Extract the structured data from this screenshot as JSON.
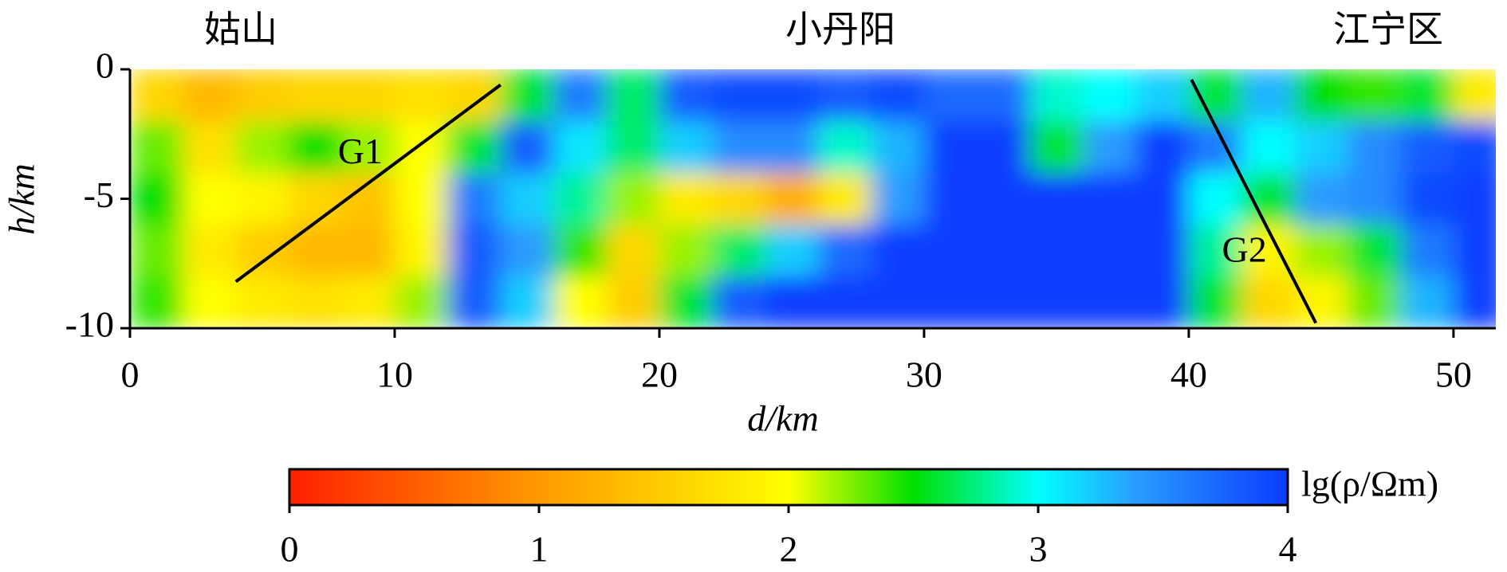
{
  "chart_data": {
    "type": "heatmap",
    "annotations_top": [
      "姑山",
      "小丹阳",
      "江宁区"
    ],
    "xlabel": "d/km",
    "ylabel": "h/km",
    "xlim": [
      0,
      51.6
    ],
    "ylim": [
      -10,
      0
    ],
    "xticks": [
      0,
      10,
      20,
      30,
      40,
      50
    ],
    "yticks": [
      0,
      -5,
      -10
    ],
    "x": [
      1,
      3,
      5,
      7,
      9,
      11,
      13,
      15,
      17,
      19,
      21,
      23,
      25,
      27,
      29,
      31,
      33,
      35,
      37,
      39,
      41,
      43,
      45,
      47,
      49,
      51
    ],
    "y": [
      -1,
      -3,
      -5,
      -7,
      -9
    ],
    "z": [
      [
        1.6,
        1.3,
        1.5,
        1.6,
        1.6,
        1.7,
        1.6,
        2.6,
        3.6,
        2.7,
        3.8,
        3.9,
        3.9,
        3.8,
        3.9,
        3.7,
        3.7,
        2.9,
        3.0,
        3.2,
        2.6,
        3.3,
        2.5,
        2.4,
        2.6,
        1.8
      ],
      [
        2.3,
        1.7,
        2.2,
        2.5,
        2.2,
        2.0,
        2.6,
        3.8,
        3.1,
        2.7,
        3.2,
        3.5,
        3.5,
        2.9,
        3.3,
        4,
        4,
        2.6,
        3.4,
        4,
        3.6,
        3.0,
        3.2,
        3.5,
        3.8,
        3.9
      ],
      [
        2.5,
        2.0,
        1.9,
        1.6,
        1.4,
        2.0,
        3.6,
        3.2,
        2.8,
        2.2,
        1.8,
        1.6,
        1.2,
        1.8,
        3.4,
        4,
        4,
        4,
        4,
        4,
        3.0,
        2.6,
        3.4,
        3.5,
        3.9,
        4
      ],
      [
        2.3,
        1.8,
        1.5,
        1.3,
        1.3,
        1.9,
        3.8,
        3.4,
        2.4,
        1.6,
        2.2,
        2.7,
        3.2,
        3.7,
        4,
        4,
        4,
        4,
        4,
        4,
        2.8,
        1.9,
        2.2,
        2.6,
        3.6,
        4
      ],
      [
        2.4,
        2.0,
        1.8,
        1.7,
        1.8,
        2.2,
        3.8,
        3.2,
        2.0,
        1.5,
        2.6,
        3.8,
        4,
        4,
        4,
        4,
        4,
        4,
        4,
        4,
        2.6,
        1.6,
        1.9,
        2.3,
        3.3,
        4
      ]
    ],
    "lines": [
      {
        "name": "G1",
        "x": [
          4,
          14
        ],
        "y": [
          -8.2,
          -0.6
        ],
        "label_x": 8.7,
        "label_y": -3.3,
        "color": "#000000"
      },
      {
        "name": "G2",
        "x": [
          40.1,
          44.8
        ],
        "y": [
          -0.4,
          -9.8
        ],
        "label_x": 42.1,
        "label_y": -7.1,
        "color": "#000000"
      }
    ],
    "colorbar": {
      "label": "lg(ρ/Ωm)",
      "clim": [
        0,
        4
      ],
      "ticks": [
        0,
        1,
        2,
        3,
        4
      ],
      "colormap": [
        {
          "value": 0,
          "color": "#ff2000"
        },
        {
          "value": 1,
          "color": "#ff9a00"
        },
        {
          "value": 2,
          "color": "#ffff00"
        },
        {
          "value": 2.5,
          "color": "#00e000"
        },
        {
          "value": 3,
          "color": "#00ffff"
        },
        {
          "value": 3.4,
          "color": "#2a9bff"
        },
        {
          "value": 4,
          "color": "#0a3cff"
        }
      ]
    }
  }
}
